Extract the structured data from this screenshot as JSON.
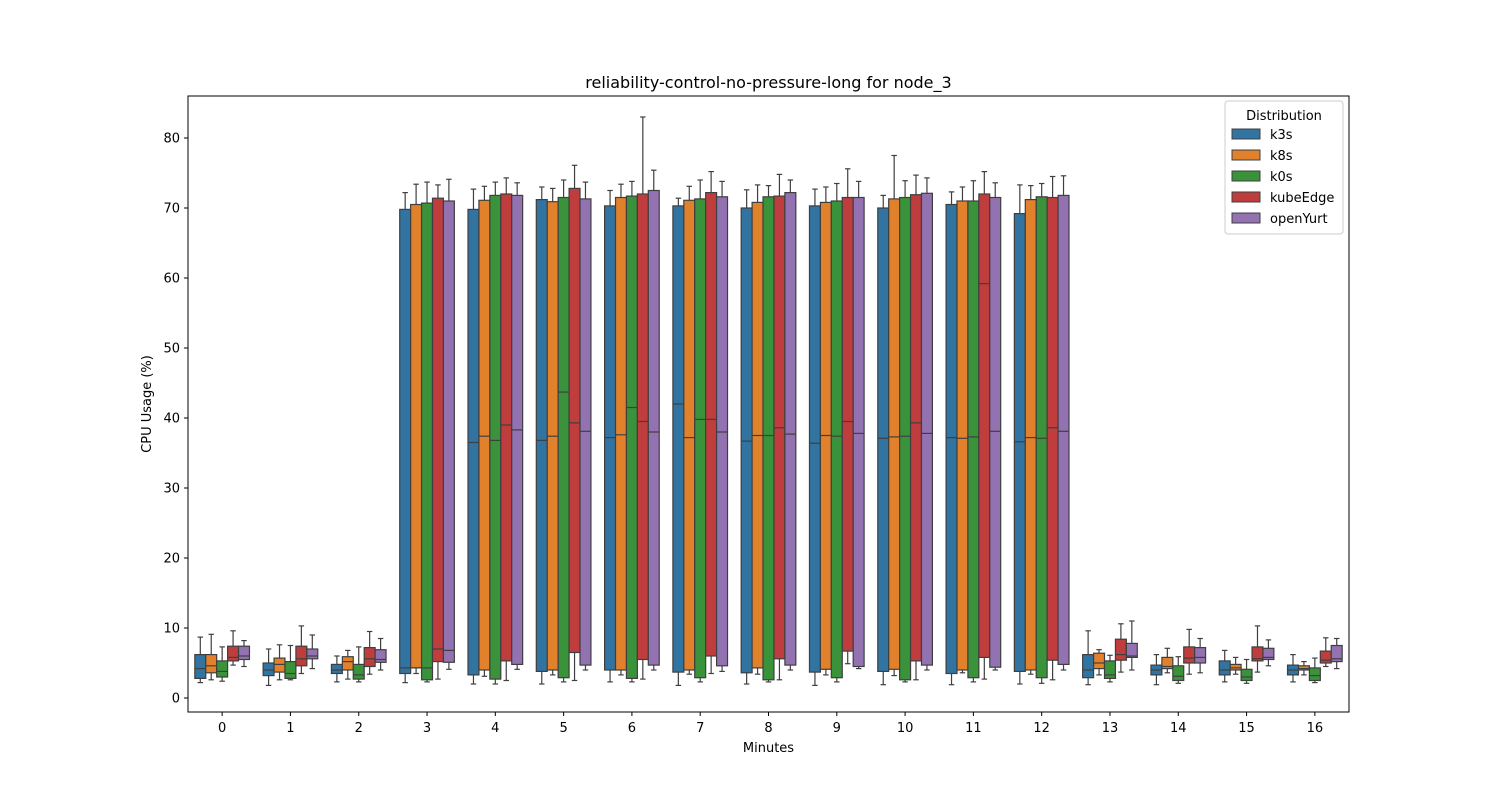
{
  "chart_data": {
    "type": "boxplot",
    "title": "reliability-control-no-pressure-long for node_3",
    "xlabel": "Minutes",
    "ylabel": "CPU Usage (%)",
    "categories": [
      "0",
      "1",
      "2",
      "3",
      "4",
      "5",
      "6",
      "7",
      "8",
      "9",
      "10",
      "11",
      "12",
      "13",
      "14",
      "15",
      "16"
    ],
    "ylim": [
      -2,
      86
    ],
    "yticks": [
      0,
      10,
      20,
      30,
      40,
      50,
      60,
      70,
      80
    ],
    "grid": false,
    "legend": {
      "title": "Distribution",
      "placement": "top-right"
    },
    "series": [
      {
        "name": "k3s",
        "color": "#3274a1",
        "boxes": [
          [
            2.2,
            2.8,
            4.2,
            6.2,
            8.7
          ],
          [
            1.8,
            3.2,
            4.0,
            5.0,
            7.0
          ],
          [
            2.3,
            3.5,
            4.0,
            4.8,
            6.0
          ],
          [
            2.2,
            3.5,
            4.3,
            69.8,
            72.2
          ],
          [
            2.0,
            3.3,
            36.5,
            69.8,
            72.7
          ],
          [
            2.0,
            3.8,
            36.8,
            71.2,
            73.0
          ],
          [
            2.3,
            4.0,
            37.2,
            70.3,
            72.5
          ],
          [
            1.8,
            3.7,
            42.0,
            70.3,
            71.4
          ],
          [
            2.0,
            3.6,
            36.7,
            70.0,
            72.6
          ],
          [
            1.8,
            3.7,
            36.4,
            70.3,
            72.7
          ],
          [
            1.9,
            3.8,
            37.1,
            70.0,
            71.8
          ],
          [
            1.9,
            3.5,
            37.2,
            70.5,
            72.3
          ],
          [
            2.0,
            3.8,
            36.6,
            69.2,
            73.3
          ],
          [
            1.9,
            2.9,
            4.0,
            6.2,
            9.6
          ],
          [
            1.9,
            3.3,
            4.0,
            4.7,
            6.2
          ],
          [
            2.3,
            3.3,
            4.0,
            5.3,
            6.8
          ],
          [
            2.3,
            3.3,
            4.0,
            4.7,
            6.2
          ]
        ]
      },
      {
        "name": "k8s",
        "color": "#e1812c",
        "boxes": [
          [
            2.6,
            3.6,
            4.6,
            6.2,
            9.1
          ],
          [
            2.6,
            3.7,
            4.8,
            5.7,
            7.6
          ],
          [
            2.7,
            4.0,
            5.2,
            5.9,
            6.8
          ],
          [
            3.5,
            4.3,
            4.3,
            70.5,
            73.4
          ],
          [
            3.1,
            4.0,
            37.4,
            71.1,
            73.1
          ],
          [
            3.3,
            4.0,
            37.4,
            70.9,
            72.8
          ],
          [
            3.3,
            4.0,
            37.6,
            71.5,
            73.4
          ],
          [
            3.4,
            4.0,
            37.2,
            71.1,
            73.1
          ],
          [
            3.4,
            4.3,
            37.5,
            70.8,
            73.3
          ],
          [
            3.3,
            4.1,
            37.5,
            70.8,
            73.0
          ],
          [
            3.2,
            4.1,
            37.3,
            71.3,
            77.5
          ],
          [
            3.6,
            4.0,
            37.1,
            71.0,
            73.0
          ],
          [
            3.4,
            4.0,
            37.2,
            71.2,
            73.2
          ],
          [
            3.3,
            4.2,
            5.0,
            6.4,
            6.9
          ],
          [
            3.6,
            4.2,
            4.5,
            5.8,
            7.1
          ],
          [
            3.4,
            4.0,
            4.3,
            4.8,
            5.8
          ],
          [
            3.3,
            4.0,
            4.2,
            4.6,
            5.2
          ]
        ]
      },
      {
        "name": "k0s",
        "color": "#3a923a",
        "boxes": [
          [
            2.4,
            3.0,
            3.8,
            5.3,
            7.3
          ],
          [
            2.6,
            2.8,
            3.5,
            5.2,
            7.5
          ],
          [
            2.3,
            2.7,
            3.3,
            4.8,
            7.3
          ],
          [
            2.3,
            2.6,
            4.3,
            70.7,
            73.7
          ],
          [
            2.0,
            2.7,
            36.8,
            71.8,
            73.7
          ],
          [
            2.3,
            2.9,
            43.7,
            71.5,
            74.0
          ],
          [
            2.3,
            2.8,
            41.5,
            71.7,
            73.8
          ],
          [
            2.3,
            2.9,
            39.8,
            71.3,
            74.0
          ],
          [
            2.3,
            2.6,
            37.5,
            71.6,
            73.2
          ],
          [
            2.3,
            2.9,
            37.4,
            71.0,
            73.5
          ],
          [
            2.3,
            2.6,
            37.4,
            71.5,
            73.9
          ],
          [
            2.3,
            2.9,
            37.3,
            71.0,
            73.9
          ],
          [
            2.1,
            2.9,
            37.1,
            71.6,
            73.5
          ],
          [
            2.3,
            2.8,
            3.3,
            5.3,
            6.1
          ],
          [
            2.1,
            2.5,
            3.1,
            4.6,
            5.9
          ],
          [
            2.1,
            2.5,
            3.0,
            4.1,
            5.5
          ],
          [
            2.2,
            2.5,
            3.2,
            4.3,
            5.7
          ]
        ]
      },
      {
        "name": "kubeEdge",
        "color": "#c03d3e",
        "boxes": [
          [
            4.7,
            5.3,
            5.8,
            7.4,
            9.6
          ],
          [
            3.5,
            4.6,
            5.6,
            7.4,
            10.3
          ],
          [
            3.4,
            4.5,
            5.6,
            7.2,
            9.5
          ],
          [
            2.7,
            5.2,
            7.0,
            71.4,
            73.3
          ],
          [
            2.5,
            5.3,
            39.0,
            72.0,
            74.3
          ],
          [
            2.5,
            6.5,
            39.3,
            72.8,
            76.1
          ],
          [
            2.7,
            5.5,
            39.5,
            72.0,
            83.0
          ],
          [
            3.5,
            6.0,
            39.8,
            72.2,
            75.2
          ],
          [
            2.6,
            5.6,
            38.6,
            71.7,
            74.8
          ],
          [
            4.9,
            6.7,
            39.5,
            71.5,
            75.6
          ],
          [
            2.6,
            5.3,
            39.3,
            71.9,
            74.7
          ],
          [
            2.7,
            5.8,
            59.2,
            72.0,
            75.2
          ],
          [
            2.6,
            5.4,
            38.6,
            71.5,
            74.5
          ],
          [
            3.7,
            5.4,
            6.2,
            8.4,
            10.6
          ],
          [
            3.4,
            5.0,
            5.7,
            7.3,
            9.8
          ],
          [
            3.7,
            5.3,
            5.6,
            7.3,
            10.3
          ],
          [
            4.5,
            5.0,
            5.4,
            6.7,
            8.6
          ]
        ]
      },
      {
        "name": "openYurt",
        "color": "#9372b2",
        "boxes": [
          [
            4.5,
            5.5,
            6.0,
            7.4,
            8.2
          ],
          [
            4.2,
            5.6,
            6.0,
            7.0,
            9.0
          ],
          [
            4.0,
            5.1,
            5.5,
            6.9,
            8.5
          ],
          [
            4.1,
            5.1,
            6.8,
            71.0,
            74.1
          ],
          [
            4.1,
            4.8,
            38.3,
            71.8,
            73.6
          ],
          [
            4.0,
            4.7,
            38.1,
            71.3,
            73.7
          ],
          [
            4.0,
            4.7,
            38.0,
            72.5,
            75.4
          ],
          [
            3.8,
            4.6,
            38.0,
            71.6,
            73.8
          ],
          [
            4.0,
            4.7,
            37.7,
            72.2,
            74.0
          ],
          [
            4.2,
            4.5,
            37.8,
            71.5,
            73.8
          ],
          [
            4.0,
            4.7,
            37.8,
            72.1,
            74.3
          ],
          [
            4.0,
            4.4,
            38.1,
            71.5,
            73.6
          ],
          [
            4.0,
            4.8,
            38.1,
            71.8,
            74.6
          ],
          [
            4.0,
            5.8,
            6.0,
            7.8,
            11.0
          ],
          [
            3.6,
            5.0,
            5.8,
            7.2,
            8.5
          ],
          [
            4.6,
            5.5,
            5.8,
            7.1,
            8.3
          ],
          [
            4.2,
            5.2,
            5.6,
            7.5,
            8.5
          ]
        ]
      }
    ]
  }
}
